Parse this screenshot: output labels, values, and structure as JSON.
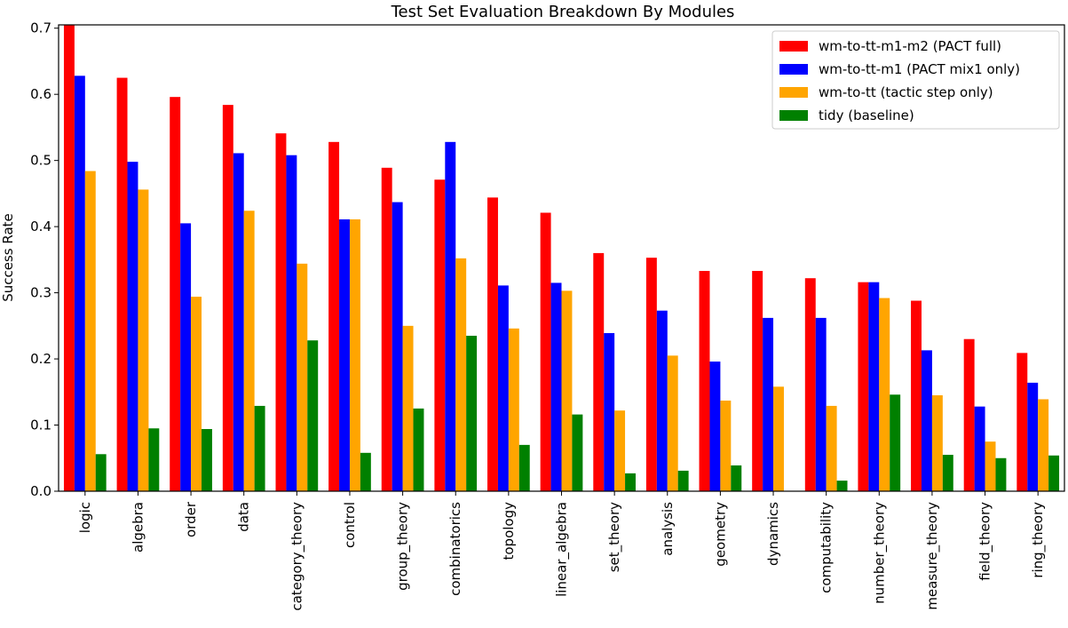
{
  "chart_data": {
    "type": "bar",
    "title": "Test Set Evaluation Breakdown By Modules",
    "xlabel": "",
    "ylabel": "Success Rate",
    "ylim": [
      0,
      0.705
    ],
    "yticks": [
      "0.0",
      "0.1",
      "0.2",
      "0.3",
      "0.4",
      "0.5",
      "0.6",
      "0.7"
    ],
    "grid": false,
    "legend_position": "top-right",
    "categories": [
      "logic",
      "algebra",
      "order",
      "data",
      "category_theory",
      "control",
      "group_theory",
      "combinatorics",
      "topology",
      "linear_algebra",
      "set_theory",
      "analysis",
      "geometry",
      "dynamics",
      "computability",
      "number_theory",
      "measure_theory",
      "field_theory",
      "ring_theory"
    ],
    "series": [
      {
        "name": "wm-to-tt-m1-m2 (PACT full)",
        "color": "#ff0000",
        "values": [
          0.71,
          0.625,
          0.596,
          0.584,
          0.541,
          0.528,
          0.489,
          0.471,
          0.444,
          0.421,
          0.36,
          0.353,
          0.333,
          0.333,
          0.322,
          0.316,
          0.288,
          0.23,
          0.209
        ]
      },
      {
        "name": "wm-to-tt-m1 (PACT mix1 only)",
        "color": "#0000ff",
        "values": [
          0.628,
          0.498,
          0.405,
          0.511,
          0.508,
          0.411,
          0.437,
          0.528,
          0.311,
          0.315,
          0.239,
          0.273,
          0.196,
          0.262,
          0.262,
          0.316,
          0.213,
          0.128,
          0.164
        ]
      },
      {
        "name": "wm-to-tt (tactic step only)",
        "color": "#ffa500",
        "values": [
          0.484,
          0.456,
          0.294,
          0.424,
          0.344,
          0.411,
          0.25,
          0.352,
          0.246,
          0.303,
          0.122,
          0.205,
          0.137,
          0.158,
          0.129,
          0.292,
          0.145,
          0.075,
          0.139
        ]
      },
      {
        "name": "tidy (baseline)",
        "color": "#008000",
        "values": [
          0.056,
          0.095,
          0.094,
          0.129,
          0.228,
          0.058,
          0.125,
          0.235,
          0.07,
          0.116,
          0.027,
          0.031,
          0.039,
          0.0,
          0.016,
          0.146,
          0.055,
          0.05,
          0.054
        ]
      }
    ]
  }
}
